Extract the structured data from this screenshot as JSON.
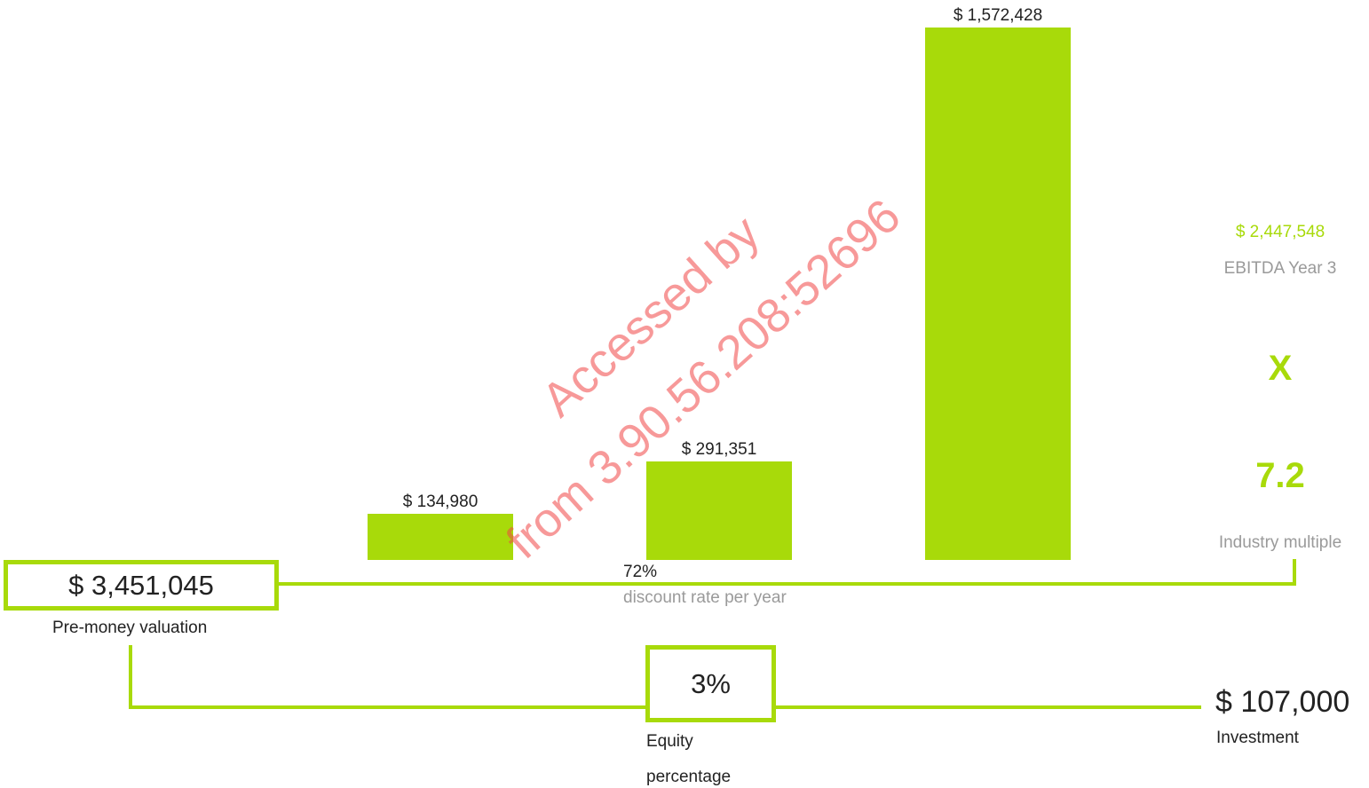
{
  "chart_data": {
    "type": "bar",
    "categories": [
      "",
      "",
      ""
    ],
    "values": [
      134980,
      291351,
      1572428
    ],
    "value_labels": [
      "$ 134,980",
      "$ 291,351",
      "$ 1,572,428"
    ],
    "ylim": [
      0,
      1572428
    ],
    "grid": false,
    "bar_color": "#a8da0a"
  },
  "valuation": {
    "pre_money_value": "$ 3,451,045",
    "pre_money_label": "Pre-money valuation",
    "discount_rate_value": "72%",
    "discount_rate_label": "discount rate per year",
    "ebitda_value": "$ 2,447,548",
    "ebitda_label": "EBITDA Year 3",
    "multiply_sign": "X",
    "multiple_value": "7.2",
    "multiple_label": "Industry multiple",
    "equity_value": "3%",
    "equity_label_line1": "Equity",
    "equity_label_line2": "percentage",
    "investment_value": "$ 107,000",
    "investment_label": "Investment"
  },
  "watermark": {
    "line1": "Accessed by",
    "line2": "from 3.90.56.208:52696"
  },
  "colors": {
    "accent": "#a8da0a",
    "muted_text": "#9a9a9a",
    "text": "#222222",
    "watermark": "#f04646"
  }
}
